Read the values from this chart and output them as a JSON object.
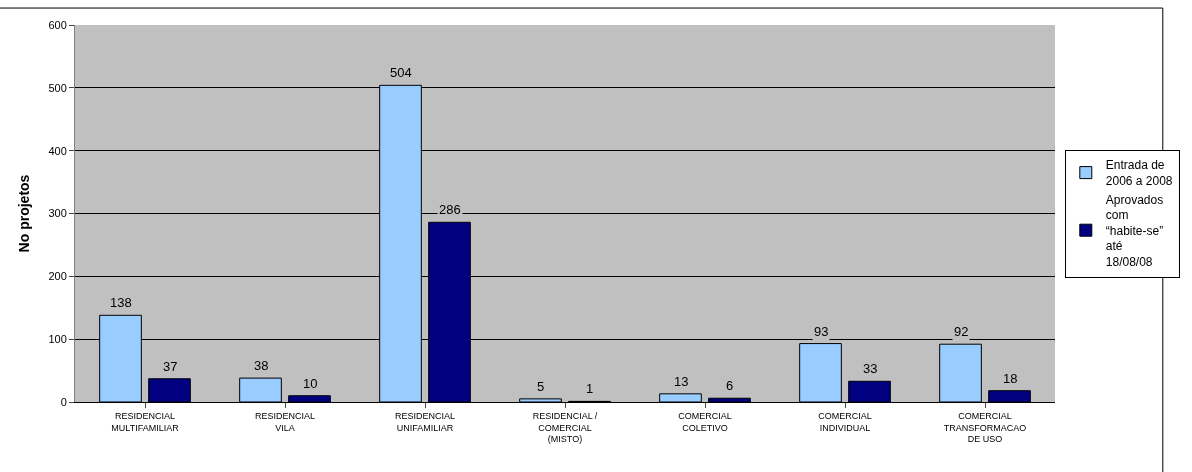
{
  "chart_data": {
    "type": "bar",
    "ylabel": "No projetos",
    "categories": [
      "RESIDENCIAL MULTIFAMILIAR",
      "RESIDENCIAL VILA",
      "RESIDENCIAL UNIFAMILIAR",
      "RESIDENCIAL / COMERCIAL (MISTO)",
      "COMERCIAL COLETIVO",
      "COMERCIAL INDIVIDUAL",
      "COMERCIAL TRANSFORMACAO DE USO"
    ],
    "series": [
      {
        "name": "Entrada de 2006 a 2008",
        "color": "#99ccff",
        "values": [
          138,
          38,
          504,
          5,
          13,
          93,
          92
        ]
      },
      {
        "name": "Aprovados com “habite-se” até 18/08/08",
        "color": "#000080",
        "values": [
          37,
          10,
          286,
          1,
          6,
          33,
          18
        ]
      }
    ],
    "ylim": [
      0,
      600
    ],
    "yticks": [
      0,
      100,
      200,
      300,
      400,
      500,
      600
    ],
    "grid": "y",
    "legend": "right",
    "data_labels": true
  }
}
